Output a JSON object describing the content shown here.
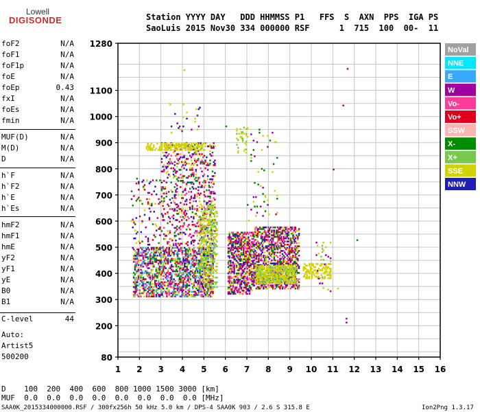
{
  "logo": {
    "line1": "Lowell",
    "line2": "DIGISONDE"
  },
  "header": {
    "line1": "Station YYYY DAY   DDD HHMMSS P1   FFS  S  AXN  PPS  IGA PS",
    "line2": "SaoLuis 2015 Nov30 334 000000 RSF      1  715  100  00-  11"
  },
  "params": {
    "group1": [
      {
        "name": "foF2",
        "value": "N/A"
      },
      {
        "name": "foF1",
        "value": "N/A"
      },
      {
        "name": "foF1p",
        "value": "N/A"
      },
      {
        "name": "foE",
        "value": "N/A"
      },
      {
        "name": "foEp",
        "value": "0.43"
      },
      {
        "name": "fxI",
        "value": "N/A"
      },
      {
        "name": "foEs",
        "value": "N/A"
      },
      {
        "name": "fmin",
        "value": "N/A"
      }
    ],
    "group2": [
      {
        "name": "MUF(D)",
        "value": "N/A"
      },
      {
        "name": "M(D)",
        "value": "N/A"
      },
      {
        "name": "D",
        "value": "N/A"
      }
    ],
    "group3": [
      {
        "name": "h`F",
        "value": "N/A"
      },
      {
        "name": "h`F2",
        "value": "N/A"
      },
      {
        "name": "h`E",
        "value": "N/A"
      },
      {
        "name": "h`Es",
        "value": "N/A"
      }
    ],
    "group4": [
      {
        "name": "hmF2",
        "value": "N/A"
      },
      {
        "name": "hmF1",
        "value": "N/A"
      },
      {
        "name": "hmE",
        "value": "N/A"
      },
      {
        "name": "yF2",
        "value": "N/A"
      },
      {
        "name": "yF1",
        "value": "N/A"
      },
      {
        "name": "yE",
        "value": "N/A"
      },
      {
        "name": "B0",
        "value": "N/A"
      },
      {
        "name": "B1",
        "value": "N/A"
      }
    ],
    "clevel": {
      "name": "C-level",
      "value": "44"
    },
    "auto": {
      "line1": "Auto:",
      "line2": "Artist5",
      "line3": "500200"
    }
  },
  "bottom": {
    "d_line": "D    100  200  400  600  800 1000 1500 3000 [km]",
    "muf_line": "MUF  0.0  0.0  0.0  0.0  0.0  0.0  0.0  0.0 [MHz]",
    "footer_left": "SAA0K_2015334000000.RSF / 300fx256h 50 kHz 5.0 km / DPS-4 SAA0K 903 / 2.6 S 315.8 E",
    "footer_right": "Ion2Png 1.3.17"
  },
  "chart_data": {
    "type": "scatter",
    "title": "",
    "xlabel": "",
    "ylabel": "",
    "xlim": [
      1,
      16
    ],
    "ylim": [
      80,
      1280
    ],
    "xticks": [
      1,
      2,
      3,
      4,
      5,
      6,
      7,
      8,
      9,
      10,
      11,
      12,
      13,
      14,
      15,
      16
    ],
    "yticks": [
      80,
      200,
      300,
      400,
      500,
      600,
      700,
      800,
      900,
      1000,
      1100,
      1280
    ],
    "grid": true,
    "legend_position": "right",
    "legend": [
      {
        "name": "NoVal",
        "color": "#a0a0a0"
      },
      {
        "name": "NNE",
        "color": "#00e8ff"
      },
      {
        "name": "E",
        "color": "#3aa8ff"
      },
      {
        "name": "W",
        "color": "#a000a0"
      },
      {
        "name": "Vo-",
        "color": "#ff3c9a"
      },
      {
        "name": "Vo+",
        "color": "#e0001e"
      },
      {
        "name": "SSW",
        "color": "#ffb4b4"
      },
      {
        "name": "X-",
        "color": "#008c00"
      },
      {
        "name": "X+",
        "color": "#78c850"
      },
      {
        "name": "SSE",
        "color": "#d2d200"
      },
      {
        "name": "NNW",
        "color": "#1e1eb4"
      }
    ],
    "blocks": [
      {
        "x": [
          1.7,
          5.4
        ],
        "y": [
          310,
          500
        ],
        "colors": [
          "#a000a0",
          "#ff3c9a",
          "#e0001e",
          "#d2d200",
          "#008c00",
          "#1e1eb4",
          "#3aa8ff",
          "#78c850"
        ],
        "density": 0.55
      },
      {
        "x": [
          1.6,
          3.0
        ],
        "y": [
          490,
          760
        ],
        "colors": [
          "#a000a0",
          "#008c00",
          "#d2d200",
          "#e0001e",
          "#1e1eb4"
        ],
        "density": 0.08
      },
      {
        "x": [
          3.0,
          5.5
        ],
        "y": [
          500,
          900
        ],
        "colors": [
          "#a000a0",
          "#1e1eb4",
          "#e0001e",
          "#d2d200",
          "#008c00",
          "#ff3c9a"
        ],
        "density": 0.22
      },
      {
        "x": [
          2.3,
          5.0
        ],
        "y": [
          870,
          900
        ],
        "colors": [
          "#d2d200"
        ],
        "density": 0.5
      },
      {
        "x": [
          4.8,
          5.6
        ],
        "y": [
          340,
          660
        ],
        "colors": [
          "#d2d200",
          "#78c850"
        ],
        "density": 0.35
      },
      {
        "x": [
          6.1,
          7.3
        ],
        "y": [
          320,
          560
        ],
        "colors": [
          "#a000a0",
          "#ff3c9a",
          "#e0001e",
          "#d2d200",
          "#008c00",
          "#1e1eb4"
        ],
        "density": 0.55
      },
      {
        "x": [
          7.3,
          9.4
        ],
        "y": [
          340,
          580
        ],
        "colors": [
          "#a000a0",
          "#ff3c9a",
          "#e0001e",
          "#d2d200",
          "#008c00",
          "#1e1eb4"
        ],
        "density": 0.5
      },
      {
        "x": [
          7.4,
          9.3
        ],
        "y": [
          360,
          430
        ],
        "colors": [
          "#d2d200",
          "#d2d200",
          "#78c850"
        ],
        "density": 0.75
      },
      {
        "x": [
          6.5,
          7.0
        ],
        "y": [
          860,
          960
        ],
        "colors": [
          "#d2d200",
          "#78c850"
        ],
        "density": 0.25
      },
      {
        "x": [
          7.0,
          8.4
        ],
        "y": [
          600,
          960
        ],
        "colors": [
          "#008c00",
          "#d2d200",
          "#a000a0"
        ],
        "density": 0.03
      },
      {
        "x": [
          9.6,
          10.9
        ],
        "y": [
          380,
          440
        ],
        "colors": [
          "#d2d200"
        ],
        "density": 0.45
      },
      {
        "x": [
          10.2,
          10.9
        ],
        "y": [
          330,
          530
        ],
        "colors": [
          "#d2d200",
          "#78c850",
          "#a000a0"
        ],
        "density": 0.05
      },
      {
        "x": [
          3.4,
          4.8
        ],
        "y": [
          930,
          1050
        ],
        "colors": [
          "#a000a0",
          "#1e1eb4",
          "#d2d200"
        ],
        "density": 0.05
      }
    ],
    "isolated_points": [
      {
        "x": 11.65,
        "y": 1180,
        "color": "#a000a0"
      },
      {
        "x": 11.45,
        "y": 1040,
        "color": "#a000a0"
      },
      {
        "x": 11.0,
        "y": 795,
        "color": "#a000a0"
      },
      {
        "x": 11.6,
        "y": 225,
        "color": "#a000a0"
      },
      {
        "x": 11.6,
        "y": 210,
        "color": "#a000a0"
      },
      {
        "x": 12.1,
        "y": 525,
        "color": "#008c00"
      },
      {
        "x": 11.2,
        "y": 340,
        "color": "#d2d200"
      },
      {
        "x": 4.05,
        "y": 1175,
        "color": "#d2d200"
      },
      {
        "x": 6.0,
        "y": 960,
        "color": "#008c00"
      },
      {
        "x": 1.85,
        "y": 760,
        "color": "#008c00"
      }
    ]
  }
}
